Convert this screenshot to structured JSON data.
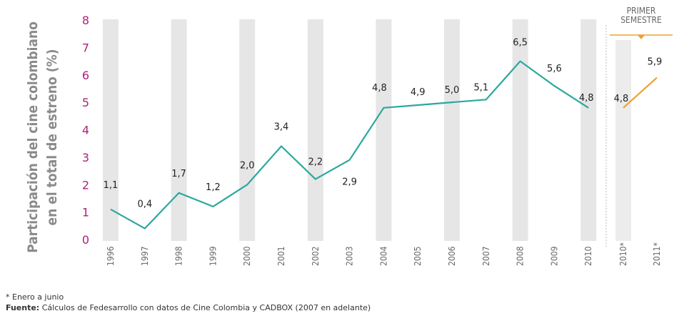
{
  "colors": {
    "main_line": "#2aa8a0",
    "semester_line": "#f0a030",
    "axis_tick": "#b0207a",
    "band": "#e6e6e6",
    "semester_band": "#ececec",
    "label": "#222222",
    "ylabel": "#8a8a8a",
    "year_label": "#666666"
  },
  "semester_header": {
    "line1": "PRIMER",
    "line2": "SEMESTRE"
  },
  "chart_data": {
    "type": "line",
    "title": "",
    "ylabel": "Participación del cine colombiano en el total de estreno (%)",
    "ylabel_lines": [
      "Participación del cine colombiano",
      "en el total  de estreno (%)"
    ],
    "ylim": [
      0,
      8
    ],
    "yticks": [
      0,
      1,
      2,
      3,
      4,
      5,
      6,
      7,
      8
    ],
    "grid": false,
    "series": [
      {
        "x": [
          "1996",
          "1997",
          "1998",
          "1999",
          "2000",
          "2001",
          "2002",
          "2003",
          "2004",
          "2005",
          "2006",
          "2007",
          "2008",
          "2009",
          "2010"
        ],
        "values": [
          1.1,
          0.4,
          1.7,
          1.2,
          2.0,
          3.4,
          2.2,
          2.9,
          4.8,
          4.9,
          5.0,
          5.1,
          6.5,
          5.6,
          4.8
        ],
        "labels": [
          "1,1",
          "0,4",
          "1,7",
          "1,2",
          "2,0",
          "3,4",
          "2,2",
          "2,9",
          "4,8",
          "4,9",
          "5,0",
          "5,1",
          "6,5",
          "5,6",
          "4,8"
        ]
      },
      {
        "x": [
          "2010*",
          "2011*"
        ],
        "values": [
          4.8,
          5.9
        ],
        "labels": [
          "4,8",
          "5,9"
        ]
      }
    ]
  },
  "footnote": "* Enero a junio",
  "source": {
    "label": "Fuente:",
    "text": " Cálculos de Fedesarrollo con datos de Cine Colombia y CADBOX (2007 en adelante)"
  }
}
